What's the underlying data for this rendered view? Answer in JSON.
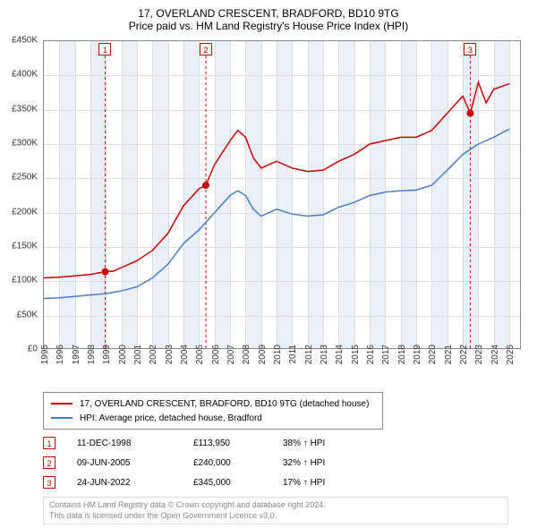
{
  "title": "17, OVERLAND CRESCENT, BRADFORD, BD10 9TG",
  "subtitle": "Price paid vs. HM Land Registry's House Price Index (HPI)",
  "chart": {
    "type": "line",
    "xlim": [
      1995,
      2025.8
    ],
    "ylim": [
      0,
      450000
    ],
    "y_ticks": [
      0,
      50000,
      100000,
      150000,
      200000,
      250000,
      300000,
      350000,
      400000,
      450000
    ],
    "y_tick_labels": [
      "£0",
      "£50K",
      "£100K",
      "£150K",
      "£200K",
      "£250K",
      "£300K",
      "£350K",
      "£400K",
      "£450K"
    ],
    "x_ticks": [
      1995,
      1996,
      1997,
      1998,
      1999,
      2000,
      2001,
      2002,
      2003,
      2004,
      2005,
      2006,
      2007,
      2008,
      2009,
      2010,
      2011,
      2012,
      2013,
      2014,
      2015,
      2016,
      2017,
      2018,
      2019,
      2020,
      2021,
      2022,
      2023,
      2024,
      2025
    ],
    "grid_color": "#dddddd",
    "border_color": "#888888",
    "background_color": "#ffffff",
    "shade_color": "#eaf0f8",
    "shade_years": [
      1996,
      1998,
      2000,
      2002,
      2004,
      2006,
      2008,
      2010,
      2012,
      2014,
      2016,
      2018,
      2020,
      2022,
      2024
    ],
    "series": [
      {
        "name": "property",
        "label": "17, OVERLAND CRESCENT, BRADFORD, BD10 9TG (detached house)",
        "color": "#cc0000",
        "line_width": 1.5,
        "data": [
          [
            1995,
            105000
          ],
          [
            1996,
            106000
          ],
          [
            1997,
            108000
          ],
          [
            1998,
            110000
          ],
          [
            1998.95,
            113950
          ],
          [
            1999.5,
            115000
          ],
          [
            2000,
            120000
          ],
          [
            2001,
            130000
          ],
          [
            2002,
            145000
          ],
          [
            2003,
            170000
          ],
          [
            2004,
            210000
          ],
          [
            2005,
            235000
          ],
          [
            2005.44,
            240000
          ],
          [
            2006,
            270000
          ],
          [
            2007,
            305000
          ],
          [
            2007.5,
            320000
          ],
          [
            2008,
            310000
          ],
          [
            2008.5,
            280000
          ],
          [
            2009,
            265000
          ],
          [
            2010,
            275000
          ],
          [
            2011,
            265000
          ],
          [
            2012,
            260000
          ],
          [
            2013,
            262000
          ],
          [
            2014,
            275000
          ],
          [
            2015,
            285000
          ],
          [
            2016,
            300000
          ],
          [
            2017,
            305000
          ],
          [
            2018,
            310000
          ],
          [
            2019,
            310000
          ],
          [
            2020,
            320000
          ],
          [
            2021,
            345000
          ],
          [
            2022,
            370000
          ],
          [
            2022.48,
            345000
          ],
          [
            2023,
            390000
          ],
          [
            2023.5,
            360000
          ],
          [
            2024,
            380000
          ],
          [
            2025,
            388000
          ]
        ]
      },
      {
        "name": "hpi",
        "label": "HPI: Average price, detached house, Bradford",
        "color": "#4a7cc4",
        "line_width": 1.5,
        "data": [
          [
            1995,
            75000
          ],
          [
            1996,
            76000
          ],
          [
            1997,
            78000
          ],
          [
            1998,
            80000
          ],
          [
            1999,
            82000
          ],
          [
            2000,
            86000
          ],
          [
            2001,
            92000
          ],
          [
            2002,
            105000
          ],
          [
            2003,
            125000
          ],
          [
            2004,
            155000
          ],
          [
            2005,
            175000
          ],
          [
            2006,
            200000
          ],
          [
            2007,
            225000
          ],
          [
            2007.5,
            232000
          ],
          [
            2008,
            225000
          ],
          [
            2008.5,
            205000
          ],
          [
            2009,
            195000
          ],
          [
            2010,
            205000
          ],
          [
            2011,
            198000
          ],
          [
            2012,
            195000
          ],
          [
            2013,
            197000
          ],
          [
            2014,
            208000
          ],
          [
            2015,
            215000
          ],
          [
            2016,
            225000
          ],
          [
            2017,
            230000
          ],
          [
            2018,
            232000
          ],
          [
            2019,
            233000
          ],
          [
            2020,
            240000
          ],
          [
            2021,
            262000
          ],
          [
            2022,
            285000
          ],
          [
            2023,
            300000
          ],
          [
            2024,
            310000
          ],
          [
            2025,
            322000
          ]
        ]
      }
    ],
    "markers": [
      {
        "x": 1998.95,
        "y": 113950,
        "color": "#cc0000",
        "r": 4
      },
      {
        "x": 2005.44,
        "y": 240000,
        "color": "#cc0000",
        "r": 4
      },
      {
        "x": 2022.48,
        "y": 345000,
        "color": "#cc0000",
        "r": 4
      }
    ],
    "event_lines": [
      {
        "x": 1998.95,
        "label": "1",
        "color": "#cc0000"
      },
      {
        "x": 2005.44,
        "label": "2",
        "color": "#cc0000"
      },
      {
        "x": 2022.48,
        "label": "3",
        "color": "#cc0000"
      }
    ]
  },
  "legend": {
    "items": [
      {
        "color": "#cc0000",
        "label": "17, OVERLAND CRESCENT, BRADFORD, BD10 9TG (detached house)"
      },
      {
        "color": "#4a7cc4",
        "label": "HPI: Average price, detached house, Bradford"
      }
    ]
  },
  "events_table": [
    {
      "num": "1",
      "date": "11-DEC-1998",
      "price": "£113,950",
      "pct": "38% ↑ HPI"
    },
    {
      "num": "2",
      "date": "09-JUN-2005",
      "price": "£240,000",
      "pct": "32% ↑ HPI"
    },
    {
      "num": "3",
      "date": "24-JUN-2022",
      "price": "£345,000",
      "pct": "17% ↑ HPI"
    }
  ],
  "footer": {
    "line1": "Contains HM Land Registry data © Crown copyright and database right 2024.",
    "line2": "This data is licensed under the Open Government Licence v3.0."
  }
}
